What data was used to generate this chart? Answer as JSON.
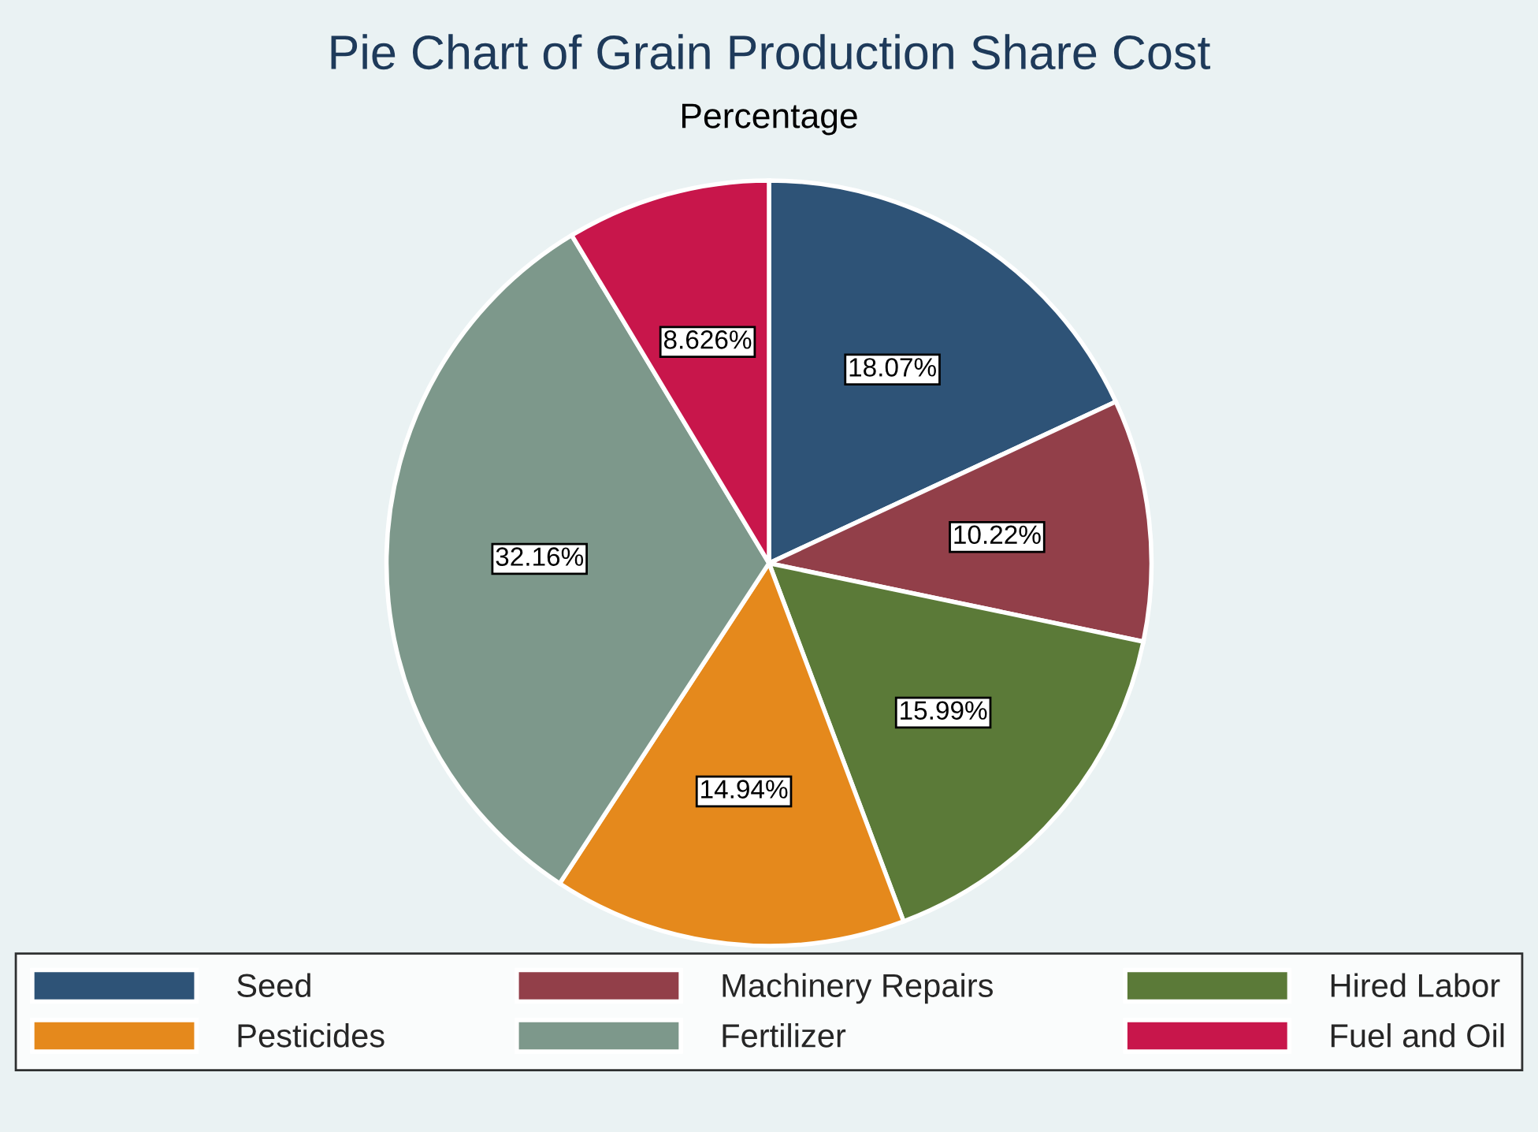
{
  "chart_data": {
    "type": "pie",
    "title": "Pie Chart of Grain Production Share Cost",
    "subtitle": "Percentage",
    "categories": [
      "Seed",
      "Machinery Repairs",
      "Hired Labor",
      "Pesticides",
      "Fertilizer",
      "Fuel and Oil"
    ],
    "values": [
      18.07,
      10.22,
      15.99,
      14.94,
      32.16,
      8.626
    ],
    "colors": [
      "#2e5377",
      "#923f49",
      "#5b7a38",
      "#e5891c",
      "#7d988b",
      "#c8164b"
    ],
    "value_labels": [
      "18.07%",
      "10.22%",
      "15.99%",
      "14.94%",
      "32.16%",
      "8.626%"
    ],
    "legend": "bottom"
  }
}
